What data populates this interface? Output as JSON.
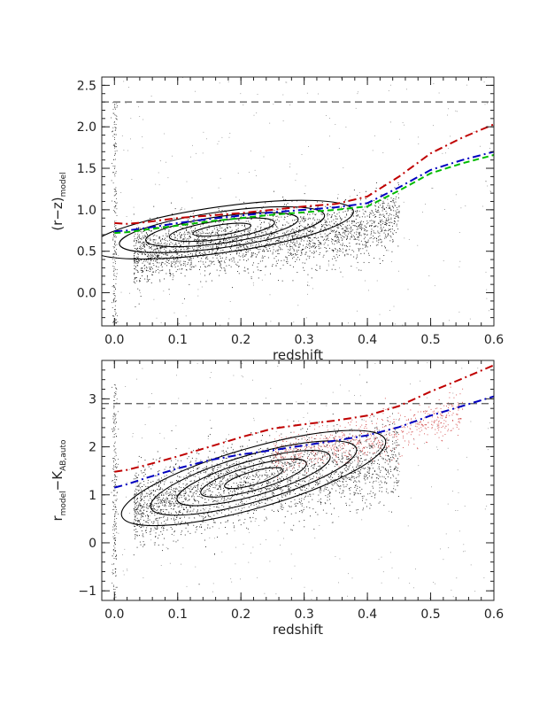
{
  "chart_data": [
    {
      "type": "scatter",
      "panel": "top",
      "xlabel": "redshift",
      "ylabel": {
        "main": "(r−z)",
        "sub": "model"
      },
      "xlim": [
        -0.02,
        0.6
      ],
      "ylim": [
        -0.4,
        2.6
      ],
      "xticks": [
        0.0,
        0.1,
        0.2,
        0.3,
        0.4,
        0.5,
        0.6
      ],
      "xtick_labels": [
        "0.0",
        "0.1",
        "0.2",
        "0.3",
        "0.4",
        "0.5",
        "0.6"
      ],
      "yticks": [
        0.0,
        0.5,
        1.0,
        1.5,
        2.0,
        2.5
      ],
      "ytick_labels": [
        "0.0",
        "0.5",
        "1.0",
        "1.5",
        "2.0",
        "2.5"
      ],
      "grid": false,
      "hline": {
        "y": 2.3,
        "style": "dashed",
        "color": "#555555"
      },
      "series": [
        {
          "style": "dash-dot",
          "color": "#c00000",
          "x": [
            0.0,
            0.02,
            0.05,
            0.1,
            0.15,
            0.2,
            0.25,
            0.3,
            0.35,
            0.4,
            0.45,
            0.5,
            0.55,
            0.6
          ],
          "y": [
            0.84,
            0.83,
            0.85,
            0.9,
            0.93,
            0.96,
            1.0,
            1.04,
            1.07,
            1.16,
            1.4,
            1.68,
            1.87,
            2.03
          ]
        },
        {
          "style": "dash-dot",
          "color": "#0000c0",
          "x": [
            0.0,
            0.02,
            0.05,
            0.1,
            0.15,
            0.2,
            0.25,
            0.3,
            0.35,
            0.4,
            0.45,
            0.5,
            0.55,
            0.6
          ],
          "y": [
            0.74,
            0.75,
            0.78,
            0.84,
            0.89,
            0.93,
            0.97,
            1.0,
            1.03,
            1.08,
            1.27,
            1.48,
            1.6,
            1.7
          ]
        },
        {
          "style": "dashed",
          "color": "#00bb00",
          "x": [
            0.0,
            0.02,
            0.05,
            0.1,
            0.15,
            0.2,
            0.25,
            0.3,
            0.35,
            0.4,
            0.45,
            0.5,
            0.55,
            0.6
          ],
          "y": [
            0.72,
            0.73,
            0.76,
            0.81,
            0.86,
            0.9,
            0.94,
            0.97,
            1.0,
            1.04,
            1.23,
            1.44,
            1.56,
            1.66
          ]
        }
      ],
      "contour_center": {
        "x": 0.17,
        "y": 0.76
      }
    },
    {
      "type": "scatter",
      "panel": "bottom",
      "xlabel": "redshift",
      "ylabel": {
        "main": "r",
        "sub1": "model",
        "mid": "−K",
        "sub2": "AB,auto"
      },
      "xlim": [
        -0.02,
        0.6
      ],
      "ylim": [
        -1.2,
        3.8
      ],
      "xticks": [
        0.0,
        0.1,
        0.2,
        0.3,
        0.4,
        0.5,
        0.6
      ],
      "xtick_labels": [
        "0.0",
        "0.1",
        "0.2",
        "0.3",
        "0.4",
        "0.5",
        "0.6"
      ],
      "yticks": [
        -1,
        0,
        1,
        2,
        3
      ],
      "ytick_labels": [
        "−1",
        "0",
        "1",
        "2",
        "3"
      ],
      "grid": false,
      "hline": {
        "y": 2.9,
        "style": "dashed",
        "color": "#555555"
      },
      "series": [
        {
          "style": "dash-dot",
          "color": "#c00000",
          "x": [
            0.0,
            0.02,
            0.05,
            0.1,
            0.15,
            0.2,
            0.25,
            0.3,
            0.35,
            0.4,
            0.45,
            0.5,
            0.55,
            0.6
          ],
          "y": [
            1.48,
            1.52,
            1.62,
            1.8,
            2.0,
            2.2,
            2.38,
            2.47,
            2.55,
            2.65,
            2.85,
            3.15,
            3.42,
            3.7
          ]
        },
        {
          "style": "dash-dot",
          "color": "#0000c0",
          "x": [
            0.0,
            0.02,
            0.05,
            0.1,
            0.15,
            0.2,
            0.25,
            0.3,
            0.35,
            0.4,
            0.45,
            0.5,
            0.55,
            0.6
          ],
          "y": [
            1.15,
            1.22,
            1.35,
            1.55,
            1.72,
            1.84,
            1.93,
            2.03,
            2.13,
            2.24,
            2.41,
            2.65,
            2.85,
            3.05
          ]
        }
      ],
      "contour_center": {
        "x": 0.22,
        "y": 1.35
      }
    }
  ],
  "colors": {
    "points": "#111111",
    "red_points": "#d04040",
    "contour": "#000000"
  }
}
